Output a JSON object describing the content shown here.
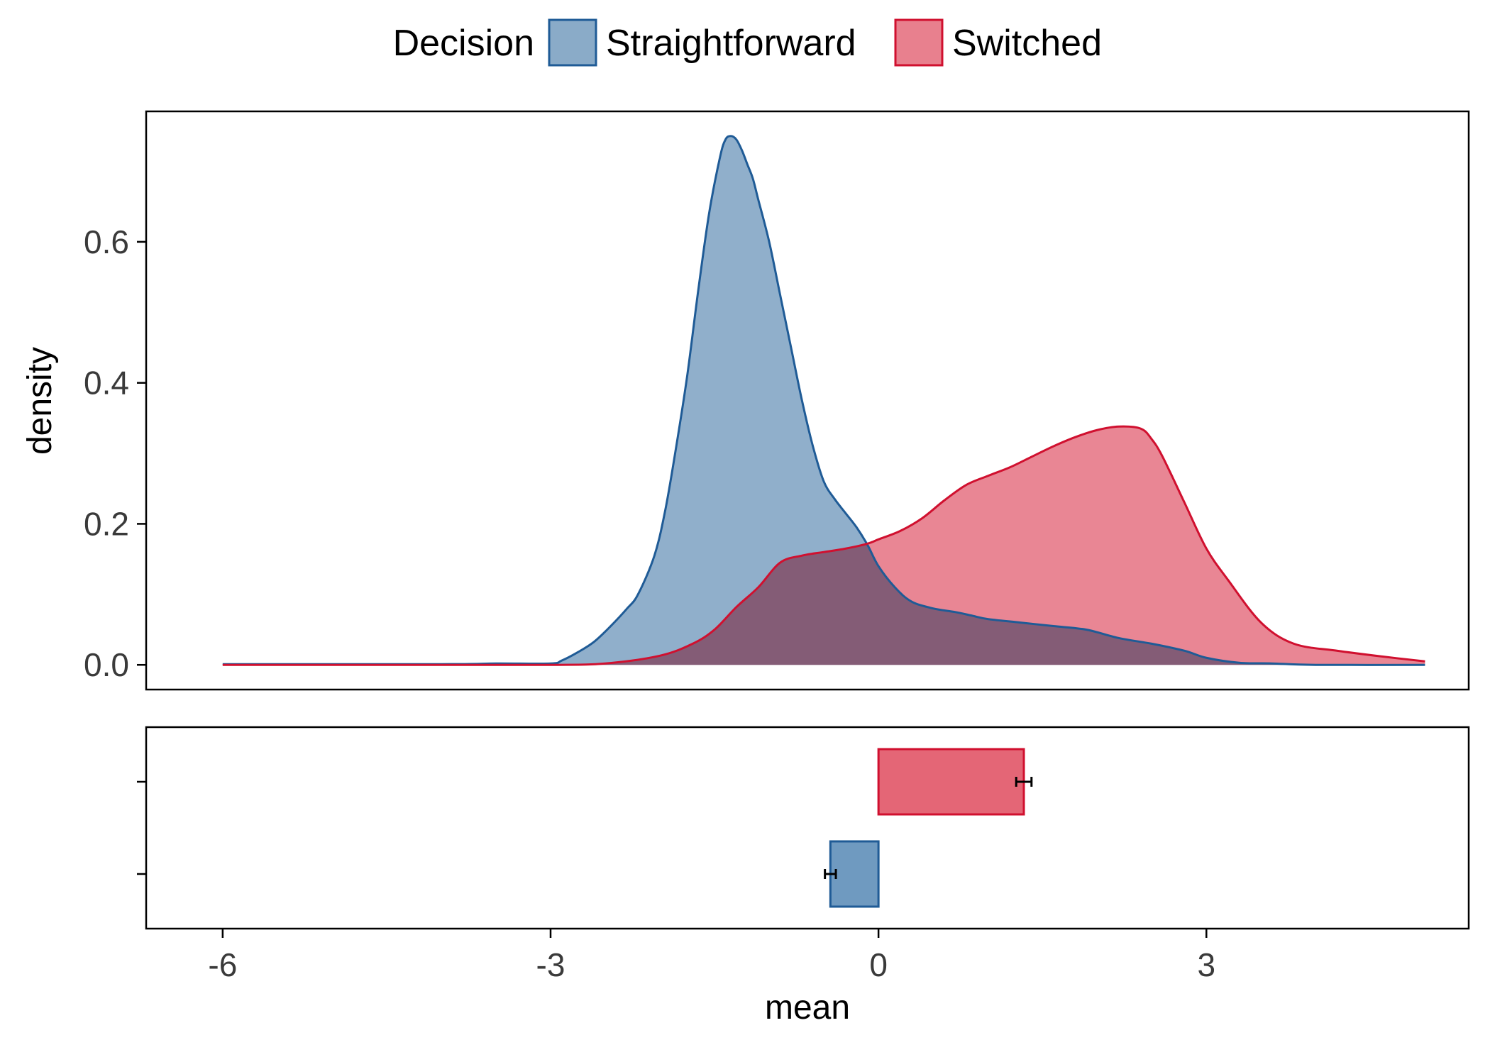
{
  "chart_data": {
    "type": "area",
    "legend": {
      "title": "Decision",
      "position": "top",
      "items": [
        {
          "label": "Straightforward",
          "fill": "#8aabc8",
          "stroke": "#1f5b96"
        },
        {
          "label": "Switched",
          "fill": "#e8808e",
          "stroke": "#d0102f"
        }
      ]
    },
    "overlap_fill": "#aa546e",
    "xlabel": "mean",
    "ylabel": "density",
    "xlim": [
      -6.7,
      5.4
    ],
    "ylim": [
      -0.035,
      0.785
    ],
    "x_ticks": [
      {
        "value": -6,
        "label": "-6"
      },
      {
        "value": -3,
        "label": "-3"
      },
      {
        "value": 0,
        "label": "0"
      },
      {
        "value": 3,
        "label": "3"
      }
    ],
    "y_ticks": [
      {
        "value": 0.0,
        "label": "0.0"
      },
      {
        "value": 0.2,
        "label": "0.2"
      },
      {
        "value": 0.4,
        "label": "0.4"
      },
      {
        "value": 0.6,
        "label": "0.6"
      }
    ],
    "grid": false,
    "density_series": [
      {
        "name": "Straightforward",
        "fill": "#8aabc8",
        "stroke": "#1f5b96",
        "x": [
          -6.0,
          -4.0,
          -3.5,
          -3.0,
          -2.9,
          -2.75,
          -2.6,
          -2.45,
          -2.3,
          -2.2,
          -2.05,
          -1.95,
          -1.85,
          -1.75,
          -1.65,
          -1.55,
          -1.45,
          -1.4,
          -1.35,
          -1.3,
          -1.25,
          -1.2,
          -1.15,
          -1.1,
          -1.0,
          -0.9,
          -0.8,
          -0.7,
          -0.6,
          -0.5,
          -0.4,
          -0.3,
          -0.2,
          -0.1,
          0.0,
          0.15,
          0.3,
          0.5,
          0.7,
          0.85,
          1.0,
          1.3,
          1.6,
          1.9,
          2.2,
          2.5,
          2.8,
          3.0,
          3.3,
          3.6,
          4.0,
          5.0
        ],
        "y": [
          0.001,
          0.001,
          0.002,
          0.002,
          0.006,
          0.018,
          0.033,
          0.055,
          0.08,
          0.1,
          0.155,
          0.22,
          0.31,
          0.41,
          0.53,
          0.64,
          0.72,
          0.745,
          0.75,
          0.745,
          0.73,
          0.71,
          0.69,
          0.66,
          0.6,
          0.525,
          0.45,
          0.375,
          0.31,
          0.26,
          0.235,
          0.215,
          0.195,
          0.17,
          0.14,
          0.11,
          0.09,
          0.08,
          0.075,
          0.07,
          0.065,
          0.06,
          0.055,
          0.05,
          0.038,
          0.03,
          0.02,
          0.01,
          0.003,
          0.002,
          0.0,
          0.0
        ]
      },
      {
        "name": "Switched",
        "fill": "#e8808e",
        "stroke": "#d0102f",
        "x": [
          -6.0,
          -4.0,
          -3.0,
          -2.5,
          -2.0,
          -1.7,
          -1.5,
          -1.3,
          -1.1,
          -0.9,
          -0.7,
          -0.5,
          -0.3,
          -0.1,
          0.0,
          0.2,
          0.4,
          0.6,
          0.8,
          1.0,
          1.2,
          1.4,
          1.6,
          1.8,
          2.0,
          2.2,
          2.4,
          2.5,
          2.6,
          2.8,
          3.0,
          3.2,
          3.5,
          3.8,
          4.2,
          4.6,
          5.0
        ],
        "y": [
          0.0,
          0.0,
          0.0,
          0.002,
          0.013,
          0.03,
          0.05,
          0.082,
          0.11,
          0.145,
          0.155,
          0.16,
          0.165,
          0.172,
          0.178,
          0.19,
          0.208,
          0.233,
          0.255,
          0.268,
          0.28,
          0.295,
          0.31,
          0.323,
          0.333,
          0.338,
          0.335,
          0.32,
          0.295,
          0.23,
          0.165,
          0.12,
          0.06,
          0.03,
          0.02,
          0.012,
          0.005
        ]
      }
    ],
    "mean_bars": {
      "type": "bar",
      "orientation": "horizontal",
      "series": [
        {
          "name": "Switched",
          "value": 1.33,
          "error": 0.07,
          "fill": "#e46676",
          "stroke": "#d0102f"
        },
        {
          "name": "Straightforward",
          "value": -0.44,
          "error": 0.05,
          "fill": "#6f9ac0",
          "stroke": "#1f5b96"
        }
      ]
    }
  }
}
